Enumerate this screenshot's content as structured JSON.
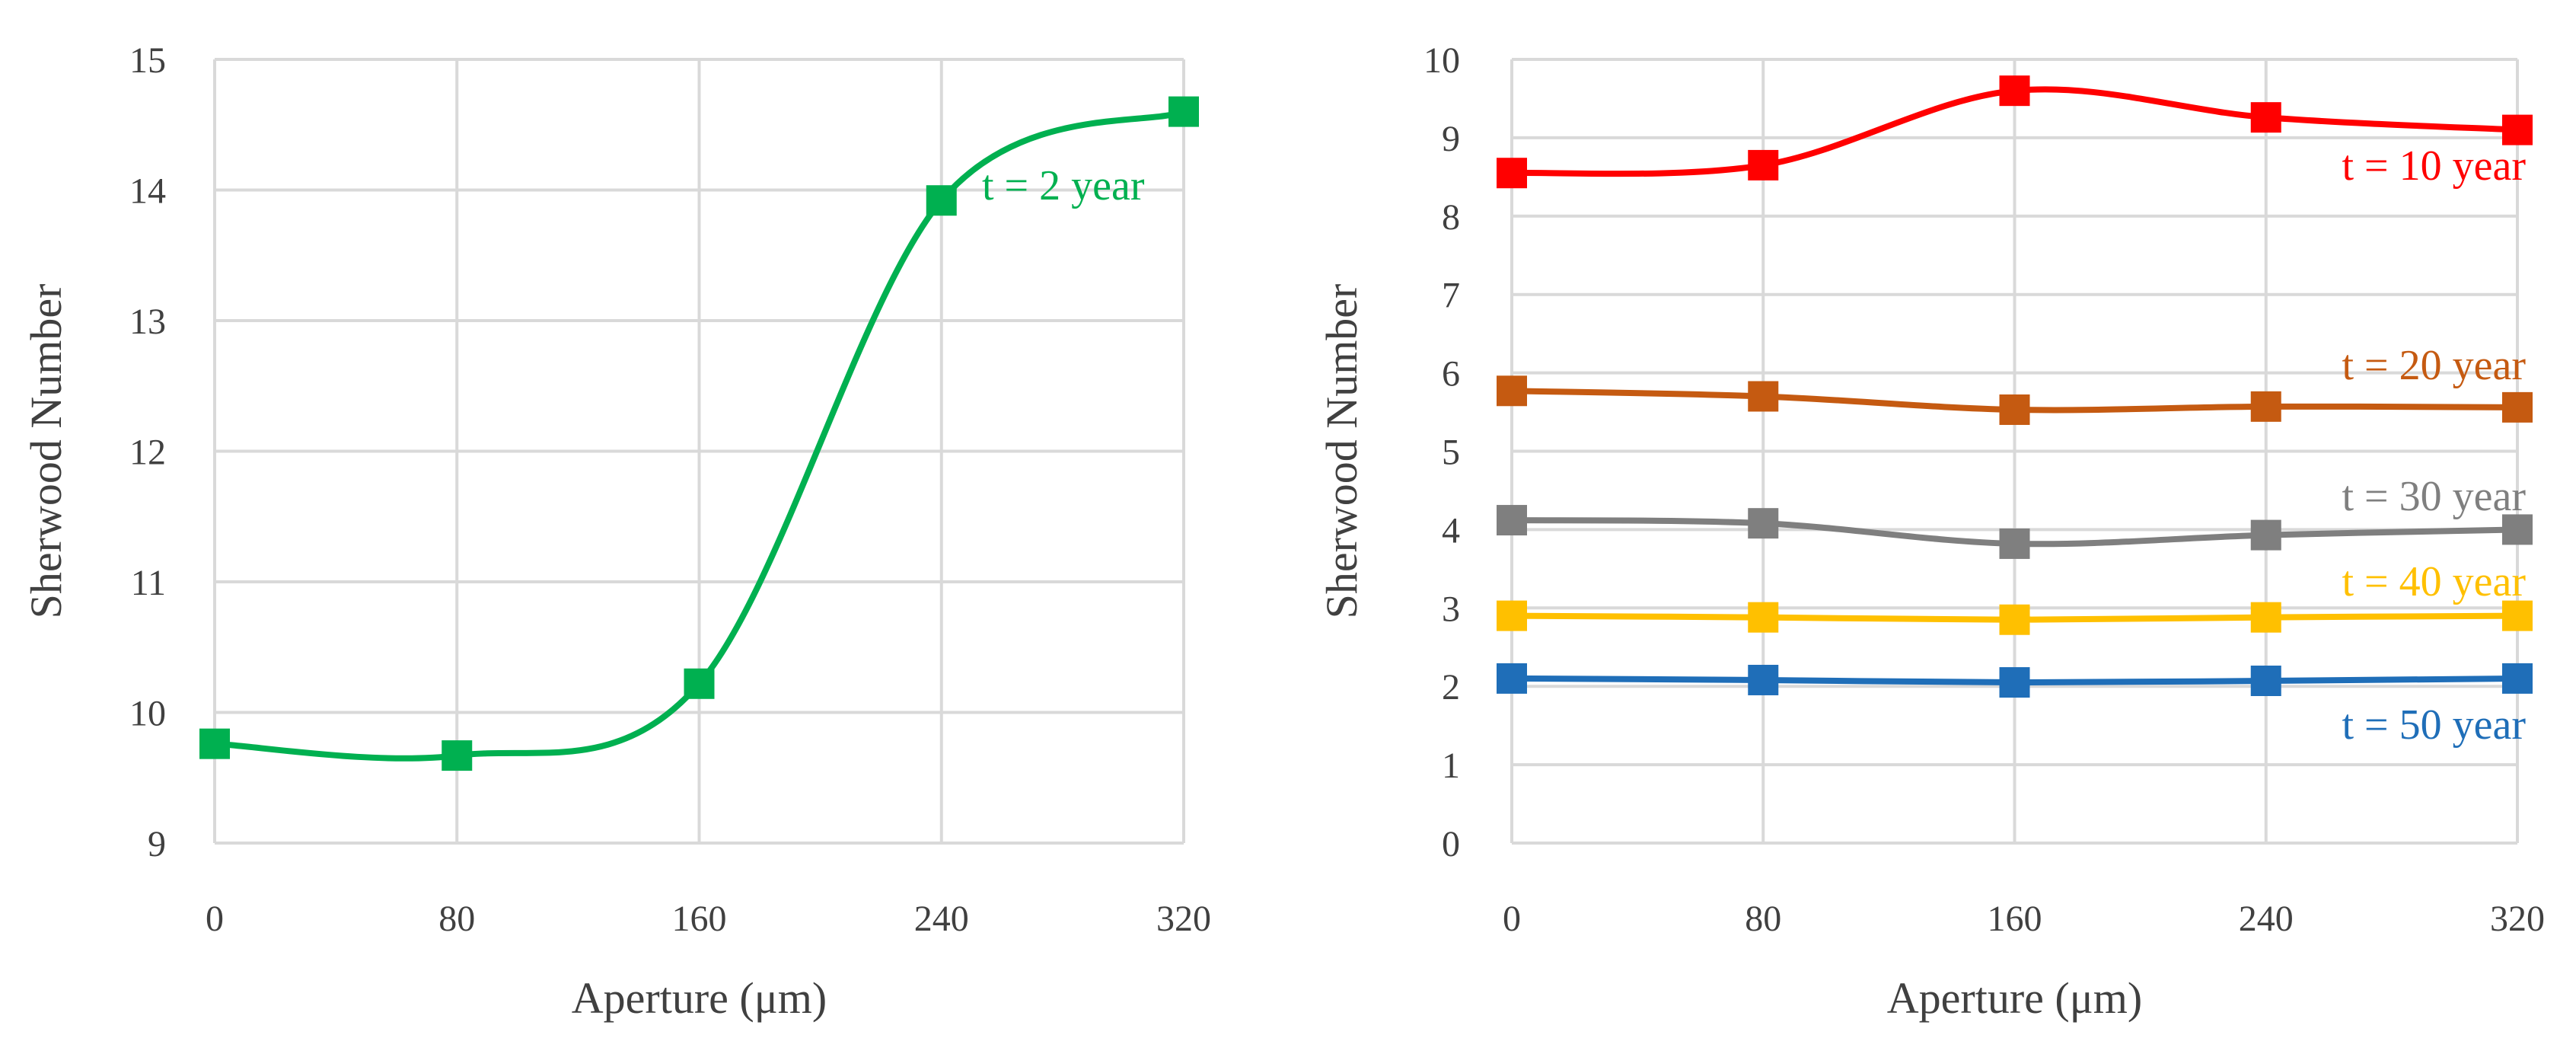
{
  "chart_data": [
    {
      "type": "line",
      "xlabel": "Aperture (μm)",
      "ylabel": "Sherwood Number",
      "x": [
        0,
        80,
        160,
        240,
        320
      ],
      "xticks": [
        "0",
        "80",
        "160",
        "240",
        "320"
      ],
      "yticks": [
        "9",
        "10",
        "11",
        "12",
        "13",
        "14",
        "15"
      ],
      "xlim": [
        0,
        320
      ],
      "ylim": [
        9,
        15
      ],
      "grid": true,
      "series": [
        {
          "name": "t = 2 year",
          "color": "#00b050",
          "values": [
            9.76,
            9.67,
            10.22,
            13.92,
            14.6
          ]
        }
      ]
    },
    {
      "type": "line",
      "xlabel": "Aperture (μm)",
      "ylabel": "Sherwood Number",
      "x": [
        0,
        80,
        160,
        240,
        320
      ],
      "xticks": [
        "0",
        "80",
        "160",
        "240",
        "320"
      ],
      "yticks": [
        "0",
        "1",
        "2",
        "3",
        "4",
        "5",
        "6",
        "7",
        "8",
        "9",
        "10"
      ],
      "xlim": [
        0,
        320
      ],
      "ylim": [
        0,
        10
      ],
      "grid": true,
      "series": [
        {
          "name": "t = 10 year",
          "color": "#ff0000",
          "values": [
            8.55,
            8.65,
            9.6,
            9.26,
            9.1
          ]
        },
        {
          "name": "t = 20 year",
          "color": "#c55a11",
          "values": [
            5.77,
            5.7,
            5.53,
            5.57,
            5.56
          ]
        },
        {
          "name": "t = 30 year",
          "color": "#7f7f7f",
          "values": [
            4.12,
            4.08,
            3.82,
            3.93,
            4.0
          ]
        },
        {
          "name": "t = 40 year",
          "color": "#ffc000",
          "values": [
            2.9,
            2.88,
            2.85,
            2.88,
            2.9
          ]
        },
        {
          "name": "t = 50 year",
          "color": "#1f6eb8",
          "values": [
            2.1,
            2.08,
            2.05,
            2.07,
            2.1
          ]
        }
      ]
    }
  ]
}
